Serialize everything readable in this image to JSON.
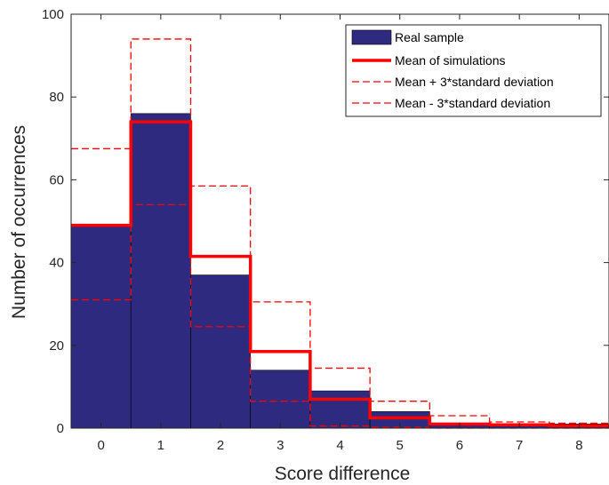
{
  "chart_data": {
    "type": "bar",
    "xlabel": "Score difference",
    "ylabel": "Number of occurrences",
    "title": "",
    "ylim": [
      0,
      100
    ],
    "xlim": [
      -0.5,
      8.5
    ],
    "yticks": [
      0,
      20,
      40,
      60,
      80,
      100
    ],
    "categories": [
      "0",
      "1",
      "2",
      "3",
      "4",
      "5",
      "6",
      "7",
      "8"
    ],
    "grid": false,
    "legend_position": "top-right",
    "series": [
      {
        "name": "Real sample",
        "kind": "bar",
        "color": "#2E2A7F",
        "values": [
          49,
          76,
          37,
          14,
          9,
          4,
          1,
          1,
          1
        ]
      },
      {
        "name": "Mean of simulations",
        "kind": "stairs",
        "color": "#FF0000",
        "values": [
          49,
          74,
          41.5,
          18.5,
          7,
          2.5,
          1,
          0.8,
          0.6
        ]
      },
      {
        "name": "Mean + 3*standard deviation",
        "kind": "stairs-dashed",
        "color": "#FF0000",
        "values": [
          67.5,
          94,
          58.5,
          30.5,
          14.5,
          6.5,
          3,
          1.5,
          1.2
        ]
      },
      {
        "name": "Mean - 3*standard deviation",
        "kind": "stairs-dashed",
        "color": "#FF0000",
        "values": [
          31,
          54,
          24.5,
          6.5,
          0.5,
          0.2,
          0,
          0,
          0
        ]
      }
    ]
  }
}
